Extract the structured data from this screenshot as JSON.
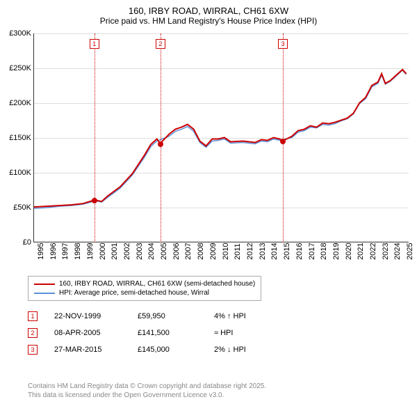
{
  "title": "160, IRBY ROAD, WIRRAL, CH61 6XW",
  "subtitle": "Price paid vs. HM Land Registry's House Price Index (HPI)",
  "chart": {
    "type": "line",
    "x_domain": [
      1995,
      2025.5
    ],
    "y_domain": [
      0,
      300000
    ],
    "y_ticks": [
      0,
      50000,
      100000,
      150000,
      200000,
      250000,
      300000
    ],
    "y_tick_labels": [
      "£0",
      "£50K",
      "£100K",
      "£150K",
      "£200K",
      "£250K",
      "£300K"
    ],
    "x_ticks": [
      1995,
      1996,
      1997,
      1998,
      1999,
      2000,
      2001,
      2002,
      2003,
      2004,
      2005,
      2006,
      2007,
      2008,
      2009,
      2010,
      2011,
      2012,
      2013,
      2014,
      2015,
      2016,
      2017,
      2018,
      2019,
      2020,
      2021,
      2022,
      2023,
      2024,
      2025
    ],
    "grid_color": "#dddddd",
    "background_color": "#ffffff",
    "series": [
      {
        "name": "160, IRBY ROAD, WIRRAL, CH61 6XW (semi-detached house)",
        "color": "#cc0000",
        "width": 2,
        "data": [
          [
            1995,
            50000
          ],
          [
            1996,
            51000
          ],
          [
            1997,
            52000
          ],
          [
            1998,
            53000
          ],
          [
            1999,
            55000
          ],
          [
            1999.9,
            59950
          ],
          [
            2000,
            60000
          ],
          [
            2000.5,
            58000
          ],
          [
            2001,
            66000
          ],
          [
            2002,
            79000
          ],
          [
            2003,
            98000
          ],
          [
            2004,
            125000
          ],
          [
            2004.5,
            140000
          ],
          [
            2005,
            148000
          ],
          [
            2005.27,
            141500
          ],
          [
            2006,
            155000
          ],
          [
            2006.5,
            162000
          ],
          [
            2007,
            165000
          ],
          [
            2007.5,
            169000
          ],
          [
            2008,
            162000
          ],
          [
            2008.5,
            145000
          ],
          [
            2009,
            138000
          ],
          [
            2009.5,
            148000
          ],
          [
            2010,
            148000
          ],
          [
            2010.5,
            150000
          ],
          [
            2011,
            144000
          ],
          [
            2012,
            145000
          ],
          [
            2013,
            143000
          ],
          [
            2013.5,
            147000
          ],
          [
            2014,
            146000
          ],
          [
            2014.5,
            150000
          ],
          [
            2015,
            148000
          ],
          [
            2015.23,
            145000
          ],
          [
            2016,
            152000
          ],
          [
            2016.5,
            160000
          ],
          [
            2017,
            162000
          ],
          [
            2017.5,
            167000
          ],
          [
            2018,
            165000
          ],
          [
            2018.5,
            171000
          ],
          [
            2019,
            170000
          ],
          [
            2019.5,
            172000
          ],
          [
            2020,
            175000
          ],
          [
            2020.5,
            178000
          ],
          [
            2021,
            185000
          ],
          [
            2021.5,
            200000
          ],
          [
            2022,
            208000
          ],
          [
            2022.5,
            225000
          ],
          [
            2023,
            230000
          ],
          [
            2023.3,
            242000
          ],
          [
            2023.6,
            228000
          ],
          [
            2024,
            232000
          ],
          [
            2024.5,
            240000
          ],
          [
            2025,
            248000
          ],
          [
            2025.3,
            242000
          ]
        ]
      },
      {
        "name": "HPI: Average price, semi-detached house, Wirral",
        "color": "#5b8fd6",
        "width": 1.5,
        "data": [
          [
            1995,
            48000
          ],
          [
            1996,
            49000
          ],
          [
            1997,
            51000
          ],
          [
            1998,
            52000
          ],
          [
            1999,
            54000
          ],
          [
            2000,
            59000
          ],
          [
            2000.5,
            57000
          ],
          [
            2001,
            64000
          ],
          [
            2002,
            77000
          ],
          [
            2003,
            96000
          ],
          [
            2004,
            122000
          ],
          [
            2004.5,
            137000
          ],
          [
            2005,
            145000
          ],
          [
            2006,
            152000
          ],
          [
            2006.5,
            159000
          ],
          [
            2007,
            162000
          ],
          [
            2007.5,
            166000
          ],
          [
            2008,
            159000
          ],
          [
            2008.5,
            143000
          ],
          [
            2009,
            136000
          ],
          [
            2009.5,
            145000
          ],
          [
            2010,
            146000
          ],
          [
            2010.5,
            148000
          ],
          [
            2011,
            142000
          ],
          [
            2012,
            143000
          ],
          [
            2013,
            141000
          ],
          [
            2013.5,
            145000
          ],
          [
            2014,
            144000
          ],
          [
            2014.5,
            148000
          ],
          [
            2015,
            146000
          ],
          [
            2016,
            150000
          ],
          [
            2016.5,
            158000
          ],
          [
            2017,
            160000
          ],
          [
            2017.5,
            165000
          ],
          [
            2018,
            164000
          ],
          [
            2018.5,
            169000
          ],
          [
            2019,
            168000
          ],
          [
            2019.5,
            170000
          ],
          [
            2020,
            174000
          ],
          [
            2020.5,
            177000
          ],
          [
            2021,
            184000
          ],
          [
            2021.5,
            199000
          ],
          [
            2022,
            206000
          ],
          [
            2022.5,
            223000
          ],
          [
            2023,
            228000
          ],
          [
            2023.3,
            240000
          ],
          [
            2023.6,
            227000
          ],
          [
            2024,
            231000
          ],
          [
            2024.5,
            239000
          ],
          [
            2025,
            247000
          ],
          [
            2025.3,
            241000
          ]
        ]
      }
    ],
    "sale_markers": [
      {
        "num": "1",
        "x": 1999.9,
        "y": 59950
      },
      {
        "num": "2",
        "x": 2005.27,
        "y": 141500
      },
      {
        "num": "3",
        "x": 2015.23,
        "y": 145000
      }
    ]
  },
  "legend": {
    "items": [
      {
        "color": "#cc0000",
        "label": "160, IRBY ROAD, WIRRAL, CH61 6XW (semi-detached house)"
      },
      {
        "color": "#5b8fd6",
        "label": "HPI: Average price, semi-detached house, Wirral"
      }
    ]
  },
  "sales": [
    {
      "num": "1",
      "date": "22-NOV-1999",
      "price": "£59,950",
      "hpi": "4% ↑ HPI"
    },
    {
      "num": "2",
      "date": "08-APR-2005",
      "price": "£141,500",
      "hpi": "≈ HPI"
    },
    {
      "num": "3",
      "date": "27-MAR-2015",
      "price": "£145,000",
      "hpi": "2% ↓ HPI"
    }
  ],
  "footer_line1": "Contains HM Land Registry data © Crown copyright and database right 2025.",
  "footer_line2": "This data is licensed under the Open Government Licence v3.0."
}
